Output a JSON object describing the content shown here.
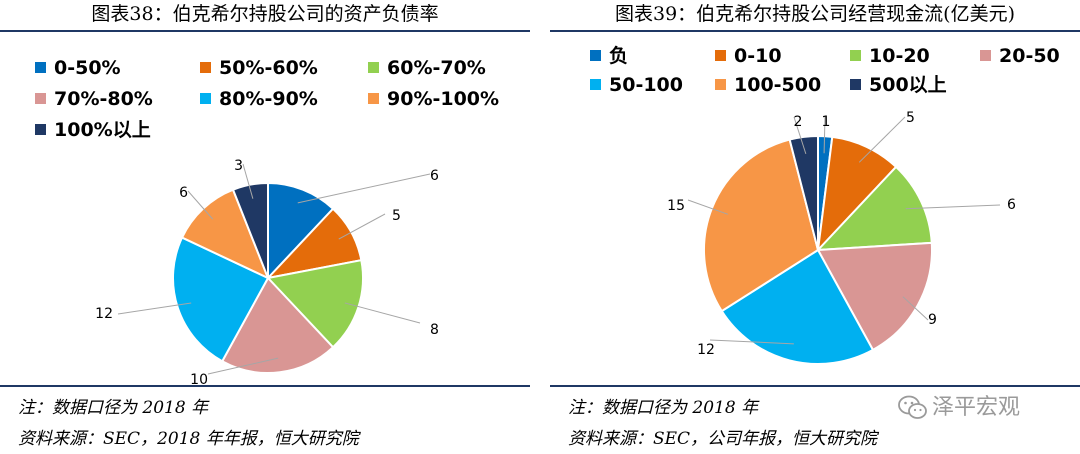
{
  "colors": {
    "frame": "#1f3864",
    "slice_outline": "#ffffff",
    "leader": "#a6a6a6",
    "c1": "#0070c0",
    "c2": "#e46c0a",
    "c3": "#92d050",
    "c4": "#d99694",
    "c5": "#00b0f0",
    "c6": "#f79646",
    "c7": "#1f3864",
    "watermark": "#9a9a9a"
  },
  "left": {
    "title": "图表38：伯克希尔持股公司的资产负债率",
    "note": "注：数据口径为 2018 年",
    "source": "资料来源：SEC，2018 年年报，恒大研究院"
  },
  "right": {
    "title": "图表39：伯克希尔持股公司经营现金流(亿美元)",
    "note": "注：数据口径为 2018 年",
    "source": "资料来源：SEC，公司年报，恒大研究院"
  },
  "watermark": {
    "icon": "wechat-icon",
    "text": "泽平宏观"
  },
  "chart_data": [
    {
      "type": "pie",
      "title": "图表38：伯克希尔持股公司的资产负债率",
      "categories": [
        "0-50%",
        "50%-60%",
        "60%-70%",
        "70%-80%",
        "80%-90%",
        "90%-100%",
        "100%以上"
      ],
      "values": [
        6,
        5,
        8,
        10,
        12,
        6,
        3
      ],
      "colors": [
        "#0070c0",
        "#e46c0a",
        "#92d050",
        "#d99694",
        "#00b0f0",
        "#f79646",
        "#1f3864"
      ],
      "legend_position": "top"
    },
    {
      "type": "pie",
      "title": "图表39：伯克希尔持股公司经营现金流(亿美元)",
      "categories": [
        "负",
        "0-10",
        "10-20",
        "20-50",
        "50-100",
        "100-500",
        "500以上"
      ],
      "values": [
        1,
        5,
        6,
        9,
        12,
        15,
        2
      ],
      "colors": [
        "#0070c0",
        "#e46c0a",
        "#92d050",
        "#d99694",
        "#00b0f0",
        "#f79646",
        "#1f3864"
      ],
      "legend_position": "top"
    }
  ]
}
